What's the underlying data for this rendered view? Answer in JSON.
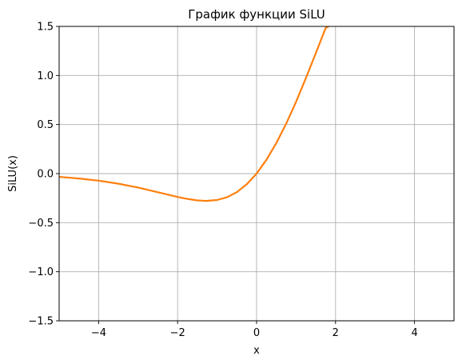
{
  "chart_data": {
    "type": "line",
    "title": "График функции SiLU",
    "xlabel": "x",
    "ylabel": "SiLU(x)",
    "xlim": [
      -5,
      5
    ],
    "ylim": [
      -1.5,
      1.5
    ],
    "xticks": [
      -4,
      -2,
      0,
      2,
      4
    ],
    "xtick_labels": [
      "−4",
      "−2",
      "0",
      "2",
      "4"
    ],
    "yticks": [
      -1.5,
      -1.0,
      -0.5,
      0.0,
      0.5,
      1.0,
      1.5
    ],
    "ytick_labels": [
      "−1.5",
      "−1.0",
      "−0.5",
      "0.0",
      "0.5",
      "1.0",
      "1.5"
    ],
    "grid": true,
    "series": [
      {
        "color": "#ff7f0e",
        "x": [
          -5.0,
          -4.5,
          -4.0,
          -3.5,
          -3.0,
          -2.5,
          -2.0,
          -1.75,
          -1.5,
          -1.28,
          -1.0,
          -0.75,
          -0.5,
          -0.25,
          0.0,
          0.25,
          0.5,
          0.75,
          1.0,
          1.25,
          1.5,
          1.75,
          1.82
        ],
        "y": [
          -0.033,
          -0.05,
          -0.072,
          -0.103,
          -0.142,
          -0.19,
          -0.238,
          -0.258,
          -0.273,
          -0.278,
          -0.269,
          -0.241,
          -0.189,
          -0.109,
          0.0,
          0.141,
          0.311,
          0.509,
          0.731,
          0.975,
          1.227,
          1.484,
          1.5
        ]
      }
    ]
  }
}
